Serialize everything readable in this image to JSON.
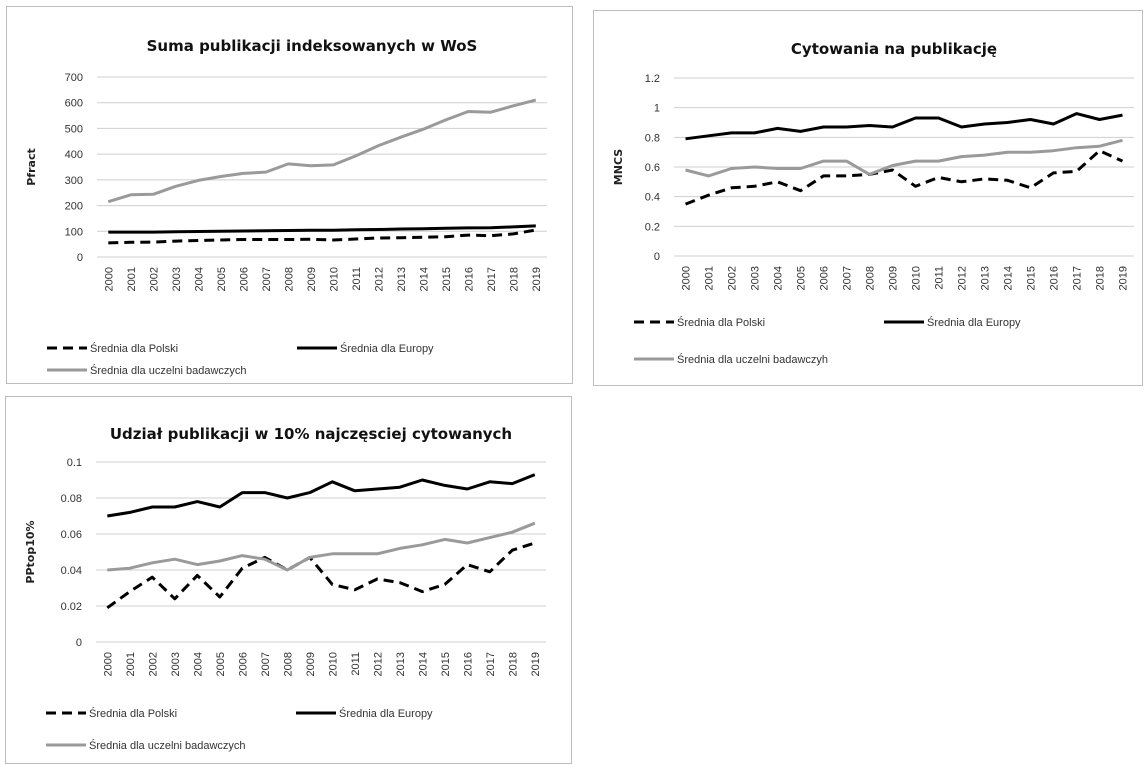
{
  "chart_data": [
    {
      "type": "line",
      "title": "Suma publikacji indeksowanych w WoS",
      "ylabel": "Pfract",
      "xlabel": "",
      "ylim": [
        0,
        700
      ],
      "yticks": [
        "0",
        "100",
        "200",
        "300",
        "400",
        "500",
        "600",
        "700"
      ],
      "grid": true,
      "legend": "bottom",
      "categories": [
        "2000",
        "2001",
        "2002",
        "2003",
        "2004",
        "2005",
        "2006",
        "2007",
        "2008",
        "2009",
        "2010",
        "2011",
        "2012",
        "2013",
        "2014",
        "2015",
        "2016",
        "2017",
        "2018",
        "2019"
      ],
      "series": [
        {
          "name": "Średnia dla Polski",
          "style": "dashed",
          "color": "#000000",
          "values": [
            55,
            57,
            58,
            62,
            64,
            66,
            68,
            68,
            68,
            69,
            66,
            70,
            74,
            75,
            77,
            79,
            85,
            83,
            90,
            105
          ]
        },
        {
          "name": "Średnia dla Europy",
          "style": "solid",
          "color": "#000000",
          "values": [
            97,
            97,
            97,
            98,
            99,
            100,
            101,
            102,
            103,
            104,
            104,
            106,
            107,
            109,
            110,
            112,
            113,
            114,
            117,
            121
          ]
        },
        {
          "name": "Średnia dla uczelni badawczych",
          "style": "solid",
          "color": "#9a9a9a",
          "values": [
            215,
            242,
            244,
            275,
            298,
            313,
            325,
            330,
            362,
            355,
            358,
            393,
            433,
            466,
            497,
            533,
            566,
            563,
            588,
            610
          ]
        }
      ]
    },
    {
      "type": "line",
      "title": "Cytowania na publikację",
      "ylabel": "MNCS",
      "xlabel": "",
      "ylim": [
        0,
        1.2
      ],
      "yticks": [
        "0",
        "0.2",
        "0.4",
        "0.6",
        "0.8",
        "1",
        "1.2"
      ],
      "grid": true,
      "legend": "bottom",
      "categories": [
        "2000",
        "2001",
        "2002",
        "2003",
        "2004",
        "2005",
        "2006",
        "2007",
        "2008",
        "2009",
        "2010",
        "2011",
        "2012",
        "2013",
        "2014",
        "2015",
        "2016",
        "2017",
        "2018",
        "2019"
      ],
      "series": [
        {
          "name": "Średnia dla Polski",
          "style": "dashed",
          "color": "#000000",
          "values": [
            0.35,
            0.41,
            0.46,
            0.47,
            0.5,
            0.44,
            0.54,
            0.54,
            0.55,
            0.58,
            0.47,
            0.53,
            0.5,
            0.52,
            0.51,
            0.46,
            0.56,
            0.57,
            0.71,
            0.64
          ]
        },
        {
          "name": "Średnia dla Europy",
          "style": "solid",
          "color": "#000000",
          "values": [
            0.79,
            0.81,
            0.83,
            0.83,
            0.86,
            0.84,
            0.87,
            0.87,
            0.88,
            0.87,
            0.93,
            0.93,
            0.87,
            0.89,
            0.9,
            0.92,
            0.89,
            0.96,
            0.92,
            0.95
          ]
        },
        {
          "name": "Średnia dla uczelni badawczyh",
          "style": "solid",
          "color": "#9a9a9a",
          "values": [
            0.58,
            0.54,
            0.59,
            0.6,
            0.59,
            0.59,
            0.64,
            0.64,
            0.55,
            0.61,
            0.64,
            0.64,
            0.67,
            0.68,
            0.7,
            0.7,
            0.71,
            0.73,
            0.74,
            0.78
          ]
        }
      ]
    },
    {
      "type": "line",
      "title": "Udział publikacji w 10% najczęsciej cytowanych",
      "ylabel": "PPtop10%",
      "xlabel": "",
      "ylim": [
        0,
        0.1
      ],
      "yticks": [
        "0",
        "0.02",
        "0.04",
        "0.06",
        "0.08",
        "0.1"
      ],
      "grid": true,
      "legend": "bottom",
      "categories": [
        "2000",
        "2001",
        "2002",
        "2003",
        "2004",
        "2005",
        "2006",
        "2007",
        "2008",
        "2009",
        "2010",
        "2011",
        "2012",
        "2013",
        "2014",
        "2015",
        "2016",
        "2017",
        "2018",
        "2019"
      ],
      "series": [
        {
          "name": "Średnia dla Polski",
          "style": "dashed",
          "color": "#000000",
          "values": [
            0.019,
            0.028,
            0.036,
            0.024,
            0.037,
            0.025,
            0.041,
            0.047,
            0.04,
            0.047,
            0.032,
            0.029,
            0.035,
            0.033,
            0.028,
            0.032,
            0.043,
            0.039,
            0.051,
            0.055
          ]
        },
        {
          "name": "Średnia dla Europy",
          "style": "solid",
          "color": "#000000",
          "values": [
            0.07,
            0.072,
            0.075,
            0.075,
            0.078,
            0.075,
            0.083,
            0.083,
            0.08,
            0.083,
            0.089,
            0.084,
            0.085,
            0.086,
            0.09,
            0.087,
            0.085,
            0.089,
            0.088,
            0.093
          ]
        },
        {
          "name": "Średnia dla uczelni badawczych",
          "style": "solid",
          "color": "#9a9a9a",
          "values": [
            0.04,
            0.041,
            0.044,
            0.046,
            0.043,
            0.045,
            0.048,
            0.046,
            0.04,
            0.047,
            0.049,
            0.049,
            0.049,
            0.052,
            0.054,
            0.057,
            0.055,
            0.058,
            0.061,
            0.066
          ]
        }
      ]
    }
  ]
}
